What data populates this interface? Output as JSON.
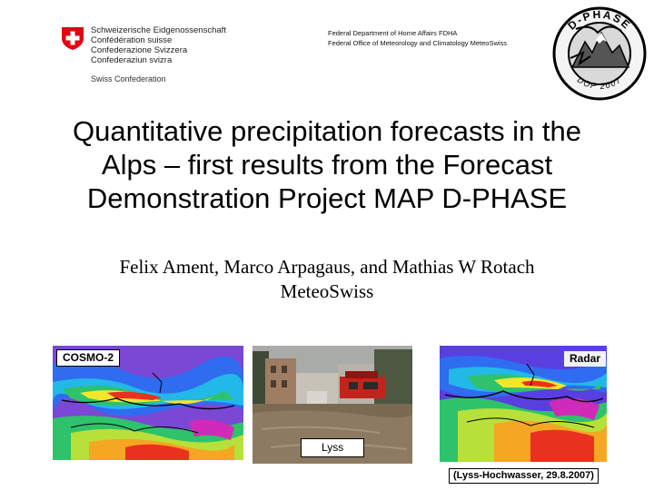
{
  "header": {
    "confederation_lines": [
      "Schweizerische Eidgenossenschaft",
      "Confédération suisse",
      "Confederazione Svizzera",
      "Confederaziun svizra"
    ],
    "confederation_en": "Swiss Confederation",
    "department_lines": [
      "Federal Department of Home Affairs FDHA",
      "Federal Office of Meteorology and Climatology  MeteoSwiss"
    ],
    "dphase_logo": {
      "top_text": "D-PHASE",
      "bottom_text": "DOP 2007"
    }
  },
  "title_lines": [
    "Quantitative precipitation forecasts in the",
    "Alps – first results from the Forecast",
    "Demonstration Project MAP D-PHASE"
  ],
  "authors_lines": [
    "Felix Ament, Marco Arpagaus, and  Mathias W Rotach",
    "MeteoSwiss"
  ],
  "panels": {
    "cosmo_label": "COSMO-2",
    "photo_label": "Lyss",
    "radar_label": "Radar",
    "caption": "(Lyss-Hochwasser, 29.8.2007)"
  },
  "colors": {
    "swiss_red": "#e20613",
    "precip_palette": [
      "#6a3fd8",
      "#2f6cf0",
      "#22b8e8",
      "#2ec26a",
      "#b8e03a",
      "#f3e62a",
      "#f5a623",
      "#e8321f",
      "#d02ab8"
    ]
  }
}
